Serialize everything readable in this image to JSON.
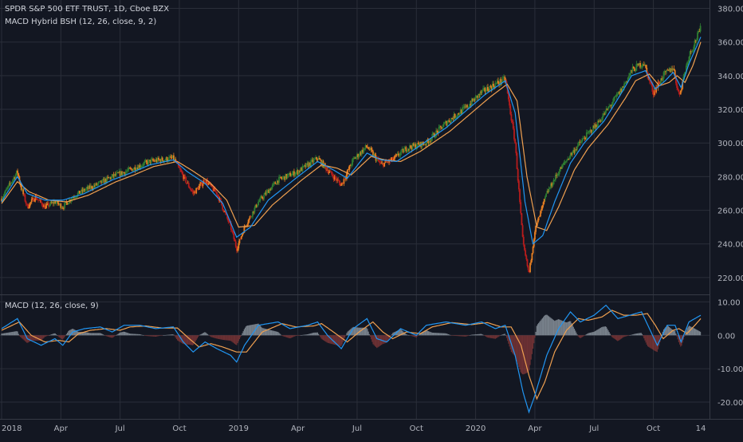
{
  "header": {
    "symbol_line": "SPDR S&P 500 ETF TRUST, 1D, Cboe BZX",
    "indicator_line": "MACD Hybrid BSH (12, 26, close, 9, 2)"
  },
  "macd_pane": {
    "label": "MACD (12, 26, close, 9)"
  },
  "colors": {
    "background": "#131722",
    "grid": "#2a2e39",
    "axis_text": "#b2b5be",
    "bull_candle": "#2e7d32",
    "bear_candle": "#b71c1c",
    "weak_bull_candle": "#e67e22",
    "fast_line": "#2196f3",
    "slow_line": "#f0a050",
    "hist_pos": "#9aa4ad",
    "hist_neg": "#8a3a3a"
  },
  "chart_data": [
    {
      "type": "line",
      "name": "price",
      "xlabel": "",
      "ylabel": "",
      "ylim": [
        210,
        385
      ],
      "y_ticks": [
        "380.00",
        "360.00",
        "340.00",
        "320.00",
        "300.00",
        "280.00",
        "260.00",
        "240.00",
        "220.00"
      ],
      "y_tick_values": [
        380,
        360,
        340,
        320,
        300,
        280,
        260,
        240,
        220
      ],
      "x_tick_labels": [
        "2018",
        "Apr",
        "Jul",
        "Oct",
        "2019",
        "Apr",
        "Jul",
        "Oct",
        "2020",
        "Apr",
        "Jul",
        "Oct",
        "14"
      ],
      "x_tick_months": [
        0,
        3,
        6,
        9,
        12,
        15,
        18,
        21,
        24,
        27,
        30,
        33,
        35.4
      ],
      "x_range_months": [
        0,
        35.6
      ],
      "close_keyframes": [
        [
          0,
          267
        ],
        [
          0.8,
          283
        ],
        [
          1.0,
          273
        ],
        [
          1.3,
          262
        ],
        [
          1.7,
          268
        ],
        [
          2.2,
          262
        ],
        [
          2.7,
          265
        ],
        [
          3.1,
          262
        ],
        [
          3.6,
          268
        ],
        [
          4.2,
          272
        ],
        [
          4.8,
          275
        ],
        [
          5.6,
          280
        ],
        [
          6.5,
          284
        ],
        [
          7.5,
          289
        ],
        [
          8.7,
          291
        ],
        [
          9.2,
          280
        ],
        [
          9.7,
          270
        ],
        [
          10.3,
          278
        ],
        [
          10.9,
          270
        ],
        [
          11.6,
          250
        ],
        [
          11.9,
          237
        ],
        [
          12.3,
          250
        ],
        [
          13.0,
          265
        ],
        [
          14.0,
          278
        ],
        [
          15.0,
          283
        ],
        [
          16.0,
          291
        ],
        [
          16.5,
          284
        ],
        [
          17.2,
          275
        ],
        [
          17.8,
          290
        ],
        [
          18.5,
          298
        ],
        [
          19.2,
          287
        ],
        [
          19.8,
          290
        ],
        [
          20.5,
          297
        ],
        [
          21.5,
          300
        ],
        [
          22.5,
          312
        ],
        [
          23.5,
          321
        ],
        [
          24.3,
          330
        ],
        [
          25.0,
          335
        ],
        [
          25.5,
          338
        ],
        [
          26.0,
          300
        ],
        [
          26.4,
          240
        ],
        [
          26.7,
          222
        ],
        [
          27.0,
          248
        ],
        [
          27.6,
          270
        ],
        [
          28.2,
          283
        ],
        [
          28.8,
          293
        ],
        [
          29.5,
          303
        ],
        [
          30.2,
          312
        ],
        [
          30.8,
          322
        ],
        [
          31.4,
          332
        ],
        [
          31.9,
          343
        ],
        [
          32.5,
          348
        ],
        [
          33.0,
          330
        ],
        [
          33.5,
          340
        ],
        [
          34.0,
          345
        ],
        [
          34.3,
          328
        ],
        [
          34.8,
          352
        ],
        [
          35.4,
          368
        ]
      ],
      "fast_ma_keyframes": [
        [
          0,
          265
        ],
        [
          0.8,
          280
        ],
        [
          1.3,
          270
        ],
        [
          2.2,
          266
        ],
        [
          3.1,
          266
        ],
        [
          4.2,
          270
        ],
        [
          5.6,
          278
        ],
        [
          6.5,
          282
        ],
        [
          7.5,
          287
        ],
        [
          8.7,
          290
        ],
        [
          9.4,
          283
        ],
        [
          10.3,
          276
        ],
        [
          11.2,
          264
        ],
        [
          11.9,
          244
        ],
        [
          12.6,
          250
        ],
        [
          13.5,
          266
        ],
        [
          15.0,
          280
        ],
        [
          16.0,
          289
        ],
        [
          16.8,
          284
        ],
        [
          17.5,
          279
        ],
        [
          18.5,
          294
        ],
        [
          19.2,
          290
        ],
        [
          20.0,
          289
        ],
        [
          21.0,
          297
        ],
        [
          22.5,
          309
        ],
        [
          23.5,
          319
        ],
        [
          24.5,
          329
        ],
        [
          25.5,
          337
        ],
        [
          26.0,
          318
        ],
        [
          26.5,
          265
        ],
        [
          26.9,
          240
        ],
        [
          27.4,
          245
        ],
        [
          28.0,
          265
        ],
        [
          28.8,
          288
        ],
        [
          29.5,
          300
        ],
        [
          30.5,
          313
        ],
        [
          31.4,
          330
        ],
        [
          31.9,
          340
        ],
        [
          32.6,
          343
        ],
        [
          33.1,
          332
        ],
        [
          33.6,
          337
        ],
        [
          34.0,
          342
        ],
        [
          34.4,
          333
        ],
        [
          34.8,
          347
        ],
        [
          35.4,
          363
        ]
      ],
      "slow_ma_keyframes": [
        [
          0,
          264
        ],
        [
          0.8,
          277
        ],
        [
          1.4,
          271
        ],
        [
          2.4,
          266
        ],
        [
          3.3,
          265
        ],
        [
          4.4,
          269
        ],
        [
          5.8,
          277
        ],
        [
          6.7,
          281
        ],
        [
          7.7,
          286
        ],
        [
          8.9,
          289
        ],
        [
          9.6,
          284
        ],
        [
          10.5,
          277
        ],
        [
          11.4,
          266
        ],
        [
          12.0,
          250
        ],
        [
          12.8,
          251
        ],
        [
          13.7,
          263
        ],
        [
          15.2,
          278
        ],
        [
          16.2,
          287
        ],
        [
          17.0,
          285
        ],
        [
          17.7,
          281
        ],
        [
          18.7,
          292
        ],
        [
          19.4,
          290
        ],
        [
          20.2,
          289
        ],
        [
          21.2,
          295
        ],
        [
          22.7,
          307
        ],
        [
          23.7,
          317
        ],
        [
          24.7,
          327
        ],
        [
          25.6,
          335
        ],
        [
          26.1,
          325
        ],
        [
          26.6,
          280
        ],
        [
          27.1,
          250
        ],
        [
          27.6,
          248
        ],
        [
          28.2,
          262
        ],
        [
          29.0,
          284
        ],
        [
          29.7,
          297
        ],
        [
          30.7,
          311
        ],
        [
          31.6,
          327
        ],
        [
          32.1,
          337
        ],
        [
          32.8,
          341
        ],
        [
          33.3,
          334
        ],
        [
          33.8,
          336
        ],
        [
          34.2,
          340
        ],
        [
          34.6,
          336
        ],
        [
          35.0,
          346
        ],
        [
          35.4,
          360
        ]
      ]
    },
    {
      "type": "line",
      "name": "macd",
      "ylim": [
        -25,
        12
      ],
      "y_ticks": [
        "10.00",
        "0.00",
        "-10.00",
        "-20.00"
      ],
      "y_tick_values": [
        10,
        0,
        -10,
        -20
      ],
      "macd_keyframes": [
        [
          0,
          2
        ],
        [
          0.8,
          5
        ],
        [
          1.3,
          -1
        ],
        [
          2.0,
          -3
        ],
        [
          2.7,
          -1
        ],
        [
          3.1,
          -3
        ],
        [
          3.6,
          1
        ],
        [
          4.2,
          2
        ],
        [
          5.0,
          2.5
        ],
        [
          5.6,
          1
        ],
        [
          6.2,
          3
        ],
        [
          7.0,
          3
        ],
        [
          7.8,
          2
        ],
        [
          8.7,
          2.5
        ],
        [
          9.2,
          -2
        ],
        [
          9.7,
          -5
        ],
        [
          10.3,
          -2
        ],
        [
          10.9,
          -4
        ],
        [
          11.6,
          -6
        ],
        [
          11.9,
          -8
        ],
        [
          12.3,
          -3
        ],
        [
          13.0,
          3
        ],
        [
          14.0,
          4
        ],
        [
          14.6,
          2
        ],
        [
          15.5,
          3
        ],
        [
          16.0,
          4
        ],
        [
          16.5,
          0
        ],
        [
          17.2,
          -4
        ],
        [
          17.8,
          2
        ],
        [
          18.5,
          5
        ],
        [
          19.0,
          -1
        ],
        [
          19.5,
          -2
        ],
        [
          20.2,
          2
        ],
        [
          21.0,
          0
        ],
        [
          21.5,
          3
        ],
        [
          22.5,
          4
        ],
        [
          23.5,
          3
        ],
        [
          24.3,
          4
        ],
        [
          25.0,
          2
        ],
        [
          25.5,
          3
        ],
        [
          26.0,
          -6
        ],
        [
          26.4,
          -17
        ],
        [
          26.7,
          -23
        ],
        [
          27.0,
          -18
        ],
        [
          27.6,
          -6
        ],
        [
          28.2,
          2
        ],
        [
          28.8,
          7
        ],
        [
          29.3,
          4
        ],
        [
          30.0,
          6
        ],
        [
          30.6,
          9
        ],
        [
          31.2,
          5
        ],
        [
          31.8,
          6
        ],
        [
          32.4,
          7
        ],
        [
          32.8,
          2
        ],
        [
          33.2,
          -3
        ],
        [
          33.7,
          3
        ],
        [
          34.1,
          3
        ],
        [
          34.4,
          -2
        ],
        [
          34.8,
          4
        ],
        [
          35.4,
          6
        ]
      ],
      "signal_keyframes": [
        [
          0,
          1.5
        ],
        [
          0.9,
          4
        ],
        [
          1.5,
          0
        ],
        [
          2.2,
          -2
        ],
        [
          2.9,
          -1.5
        ],
        [
          3.4,
          -2
        ],
        [
          3.9,
          0.5
        ],
        [
          4.5,
          1.5
        ],
        [
          5.3,
          2
        ],
        [
          6.0,
          1.5
        ],
        [
          6.5,
          2.5
        ],
        [
          7.3,
          2.8
        ],
        [
          8.1,
          2.2
        ],
        [
          8.9,
          2.2
        ],
        [
          9.5,
          -1
        ],
        [
          10.0,
          -3.5
        ],
        [
          10.6,
          -2.5
        ],
        [
          11.2,
          -3.5
        ],
        [
          11.9,
          -5
        ],
        [
          12.4,
          -5
        ],
        [
          13.2,
          1
        ],
        [
          14.2,
          3.5
        ],
        [
          14.9,
          2.5
        ],
        [
          15.8,
          2.8
        ],
        [
          16.2,
          3.5
        ],
        [
          16.8,
          1
        ],
        [
          17.5,
          -2
        ],
        [
          18.1,
          1
        ],
        [
          18.8,
          4
        ],
        [
          19.3,
          1
        ],
        [
          19.8,
          -1
        ],
        [
          20.5,
          1
        ],
        [
          21.2,
          0.5
        ],
        [
          21.8,
          2.5
        ],
        [
          22.8,
          3.8
        ],
        [
          23.8,
          3.2
        ],
        [
          24.6,
          3.8
        ],
        [
          25.3,
          2.5
        ],
        [
          25.8,
          2.5
        ],
        [
          26.3,
          -3
        ],
        [
          26.7,
          -12
        ],
        [
          27.1,
          -19
        ],
        [
          27.5,
          -14
        ],
        [
          28.0,
          -5
        ],
        [
          28.6,
          1.5
        ],
        [
          29.2,
          5
        ],
        [
          29.7,
          4.5
        ],
        [
          30.4,
          5.5
        ],
        [
          30.9,
          7.5
        ],
        [
          31.5,
          6
        ],
        [
          32.1,
          6
        ],
        [
          32.7,
          6.5
        ],
        [
          33.1,
          3
        ],
        [
          33.5,
          -1
        ],
        [
          34.0,
          1.5
        ],
        [
          34.3,
          2
        ],
        [
          34.7,
          0.5
        ],
        [
          35.1,
          3
        ],
        [
          35.4,
          5
        ]
      ]
    }
  ]
}
